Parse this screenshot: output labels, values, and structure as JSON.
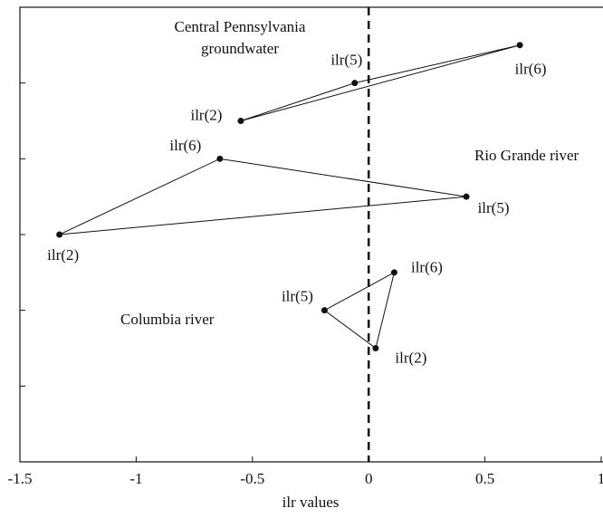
{
  "chart_data": {
    "type": "scatter",
    "xlabel": "ilr values",
    "xlim": [
      -1.5,
      1
    ],
    "xticks": [
      -1.5,
      -1,
      -0.5,
      0,
      0.5,
      1
    ],
    "ylim": [
      0,
      6
    ],
    "yticks": [
      1,
      2,
      3,
      4,
      5
    ],
    "vline": 0,
    "color": "#111111",
    "series": [
      {
        "name": "Central Pennsylvania groundwater",
        "point_labels": [
          "ilr(2)",
          "ilr(5)",
          "ilr(6)"
        ],
        "x": [
          -0.55,
          -0.06,
          0.65
        ],
        "values": [
          4.5,
          5.0,
          5.5
        ]
      },
      {
        "name": "Rio Grande river",
        "point_labels": [
          "ilr(6)",
          "ilr(5)",
          "ilr(2)"
        ],
        "x": [
          -0.64,
          0.42,
          -1.33
        ],
        "values": [
          4.0,
          3.5,
          3.0
        ]
      },
      {
        "name": "Columbia river",
        "point_labels": [
          "ilr(6)",
          "ilr(5)",
          "ilr(2)"
        ],
        "x": [
          0.11,
          -0.19,
          0.03
        ],
        "values": [
          2.5,
          2.0,
          1.5
        ]
      }
    ]
  }
}
